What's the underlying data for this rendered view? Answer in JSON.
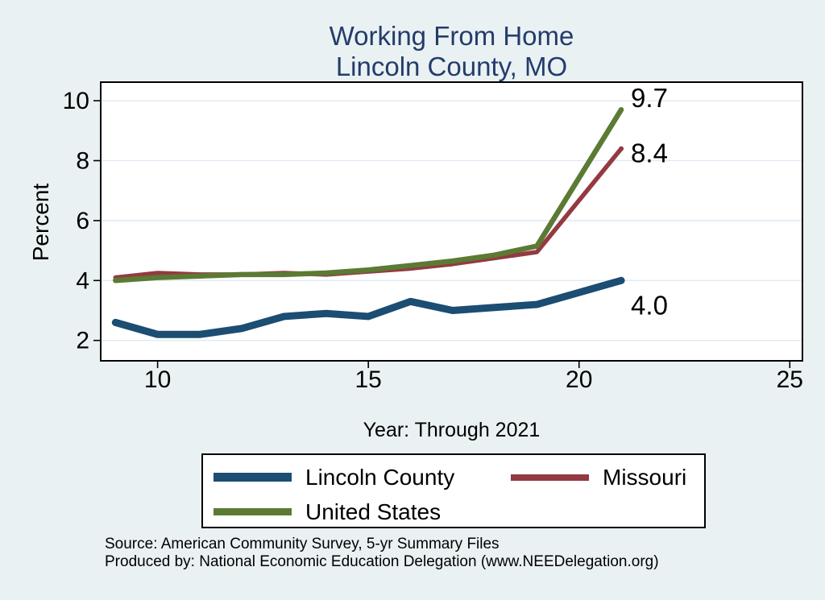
{
  "title": {
    "line1": "Working From Home",
    "line2": "Lincoln County, MO"
  },
  "chart_data": {
    "type": "line",
    "title": "Working From Home",
    "subtitle": "Lincoln County, MO",
    "xlabel": "Year: Through 2021",
    "ylabel": "Percent",
    "x_ticks": [
      10,
      15,
      20,
      25
    ],
    "y_ticks": [
      2,
      4,
      6,
      8,
      10
    ],
    "xlim": [
      8.65,
      25.3
    ],
    "ylim": [
      1.32,
      10.62
    ],
    "grid": "horizontal",
    "legend_position": "bottom",
    "series": [
      {
        "name": "Lincoln County",
        "color": "#1c4d72",
        "x": [
          9,
          10,
          11,
          12,
          13,
          14,
          15,
          16,
          17,
          18,
          19,
          20,
          21
        ],
        "values": [
          2.6,
          2.2,
          2.2,
          2.4,
          2.8,
          2.9,
          2.8,
          3.3,
          3.0,
          3.1,
          3.2,
          3.6,
          4.0
        ],
        "end_label": "4.0"
      },
      {
        "name": "Missouri",
        "color": "#943a41",
        "x": [
          9,
          10,
          11,
          12,
          13,
          14,
          15,
          16,
          17,
          18,
          19,
          21
        ],
        "values": [
          4.1,
          4.25,
          4.2,
          4.2,
          4.25,
          4.2,
          4.3,
          4.4,
          4.55,
          4.75,
          4.95,
          8.4
        ],
        "end_label": "8.4"
      },
      {
        "name": "United States",
        "color": "#5b7a33",
        "x": [
          9,
          10,
          11,
          12,
          13,
          14,
          15,
          16,
          17,
          18,
          19,
          21
        ],
        "values": [
          4.0,
          4.1,
          4.15,
          4.2,
          4.2,
          4.25,
          4.35,
          4.5,
          4.65,
          4.85,
          5.15,
          9.7
        ],
        "end_label": "9.7"
      }
    ]
  },
  "footer": {
    "line1": "Source: American Community Survey, 5-yr Summary Files",
    "line2": "Produced by: National Economic Education Delegation (www.NEEDelegation.org)"
  },
  "colors": {
    "background": "#eaf1f3",
    "plot_background": "#ffffff",
    "grid": "#dfeaf2",
    "axis": "#000000",
    "title_text": "#233c6a",
    "label_text": "#000000"
  }
}
